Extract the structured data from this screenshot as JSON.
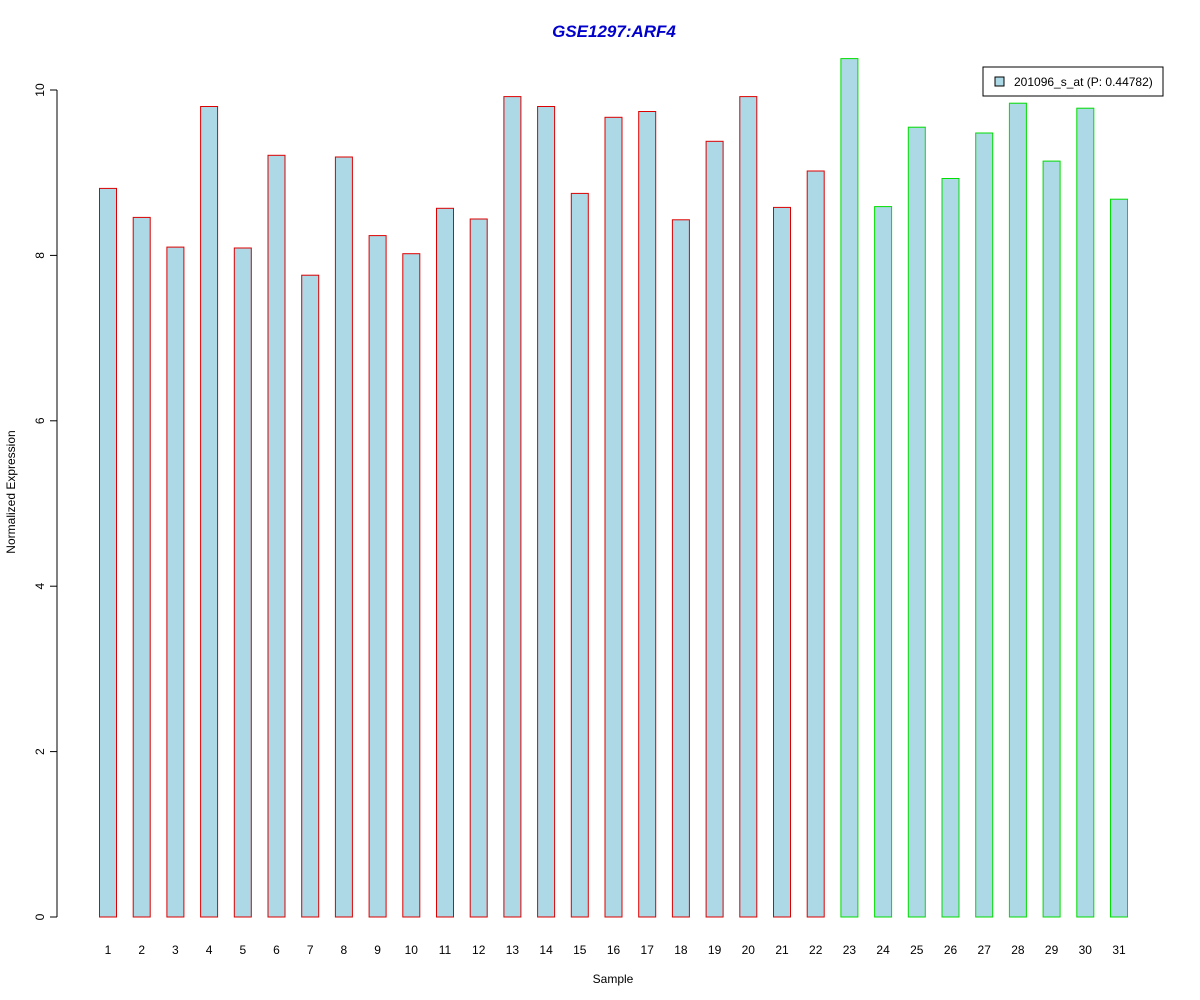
{
  "chart_data": {
    "type": "bar",
    "title": "GSE1297:ARF4",
    "xlabel": "Sample",
    "ylabel": "Normalized Expression",
    "categories": [
      "1",
      "2",
      "3",
      "4",
      "5",
      "6",
      "7",
      "8",
      "9",
      "10",
      "11",
      "12",
      "13",
      "14",
      "15",
      "16",
      "17",
      "18",
      "19",
      "20",
      "21",
      "22",
      "23",
      "24",
      "25",
      "26",
      "27",
      "28",
      "29",
      "30",
      "31"
    ],
    "series": [
      {
        "name": "201096_s_at (P: 0.44782)",
        "values": [
          8.81,
          8.46,
          8.1,
          9.8,
          8.09,
          9.21,
          7.76,
          9.19,
          8.24,
          8.02,
          8.57,
          8.44,
          9.92,
          9.8,
          8.75,
          9.67,
          9.74,
          8.43,
          9.38,
          9.92,
          8.58,
          9.02,
          10.38,
          8.59,
          9.55,
          8.93,
          9.48,
          9.84,
          9.14,
          9.78,
          8.68
        ]
      }
    ],
    "groups": [
      {
        "from": 1,
        "to": 22,
        "border_color": "#dd0000"
      },
      {
        "from": 23,
        "to": 31,
        "border_color": "#00dd00"
      }
    ],
    "ylim": [
      0,
      10.4
    ],
    "yticks": [
      0,
      2,
      4,
      6,
      8,
      10
    ],
    "bar_fill": "#add8e6",
    "title_color": "#0000cc",
    "legend_position": "top-right",
    "grid": false
  }
}
